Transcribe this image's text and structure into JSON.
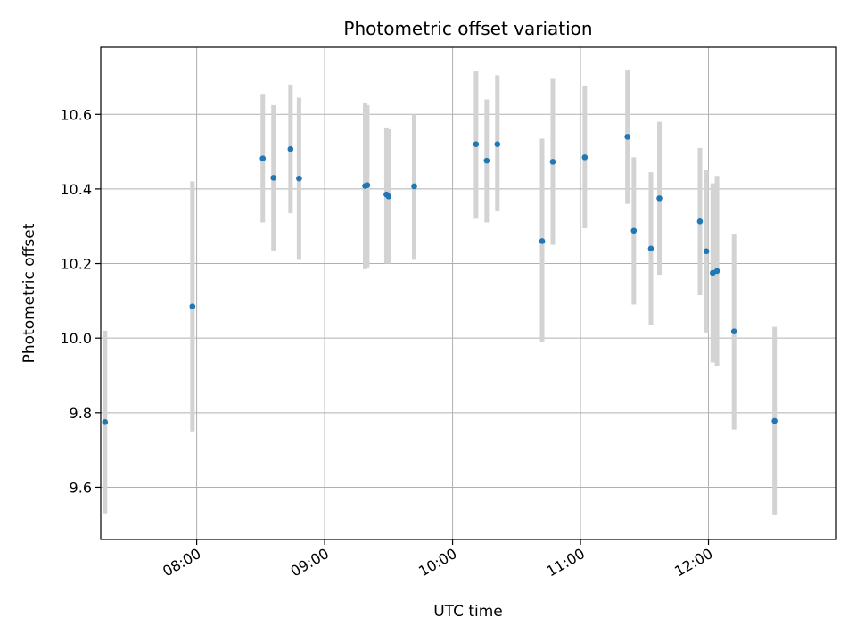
{
  "chart_data": {
    "type": "scatter",
    "title": "Photometric offset variation",
    "xlabel": "UTC time",
    "ylabel": "Photometric offset",
    "x_axis_type": "time",
    "xlim": [
      "07:15",
      "13:00"
    ],
    "ylim": [
      9.46,
      10.78
    ],
    "xticks": [
      "08:00",
      "09:00",
      "10:00",
      "11:00",
      "12:00"
    ],
    "yticks": [
      9.6,
      9.8,
      10.0,
      10.2,
      10.4,
      10.6
    ],
    "ytick_labels": [
      "9.6",
      "9.8",
      "10.0",
      "10.2",
      "10.4",
      "10.6"
    ],
    "grid": true,
    "point_color": "#1f77b4",
    "errorbar_color": "#d3d3d3",
    "points": [
      {
        "x": "07:17",
        "y": 9.775,
        "ylo": 9.53,
        "yhi": 10.02
      },
      {
        "x": "07:58",
        "y": 10.085,
        "ylo": 9.75,
        "yhi": 10.42
      },
      {
        "x": "08:31",
        "y": 10.482,
        "ylo": 10.31,
        "yhi": 10.655
      },
      {
        "x": "08:36",
        "y": 10.43,
        "ylo": 10.235,
        "yhi": 10.625
      },
      {
        "x": "08:44",
        "y": 10.507,
        "ylo": 10.335,
        "yhi": 10.68
      },
      {
        "x": "08:48",
        "y": 10.428,
        "ylo": 10.21,
        "yhi": 10.645
      },
      {
        "x": "09:19",
        "y": 10.408,
        "ylo": 10.185,
        "yhi": 10.63
      },
      {
        "x": "09:20",
        "y": 10.41,
        "ylo": 10.19,
        "yhi": 10.625
      },
      {
        "x": "09:29",
        "y": 10.385,
        "ylo": 10.2,
        "yhi": 10.565
      },
      {
        "x": "09:30",
        "y": 10.38,
        "ylo": 10.2,
        "yhi": 10.56
      },
      {
        "x": "09:42",
        "y": 10.407,
        "ylo": 10.21,
        "yhi": 10.6
      },
      {
        "x": "10:11",
        "y": 10.52,
        "ylo": 10.32,
        "yhi": 10.715
      },
      {
        "x": "10:16",
        "y": 10.476,
        "ylo": 10.31,
        "yhi": 10.64
      },
      {
        "x": "10:21",
        "y": 10.52,
        "ylo": 10.34,
        "yhi": 10.705
      },
      {
        "x": "10:42",
        "y": 10.26,
        "ylo": 9.99,
        "yhi": 10.535
      },
      {
        "x": "10:47",
        "y": 10.473,
        "ylo": 10.25,
        "yhi": 10.695
      },
      {
        "x": "11:02",
        "y": 10.485,
        "ylo": 10.295,
        "yhi": 10.675
      },
      {
        "x": "11:22",
        "y": 10.54,
        "ylo": 10.36,
        "yhi": 10.72
      },
      {
        "x": "11:25",
        "y": 10.288,
        "ylo": 10.09,
        "yhi": 10.485
      },
      {
        "x": "11:33",
        "y": 10.24,
        "ylo": 10.035,
        "yhi": 10.445
      },
      {
        "x": "11:37",
        "y": 10.375,
        "ylo": 10.17,
        "yhi": 10.58
      },
      {
        "x": "11:56",
        "y": 10.313,
        "ylo": 10.115,
        "yhi": 10.51
      },
      {
        "x": "11:59",
        "y": 10.233,
        "ylo": 10.015,
        "yhi": 10.45
      },
      {
        "x": "12:02",
        "y": 10.175,
        "ylo": 9.935,
        "yhi": 10.415
      },
      {
        "x": "12:04",
        "y": 10.18,
        "ylo": 9.925,
        "yhi": 10.435
      },
      {
        "x": "12:12",
        "y": 10.018,
        "ylo": 9.755,
        "yhi": 10.28
      },
      {
        "x": "12:31",
        "y": 9.778,
        "ylo": 9.525,
        "yhi": 10.03
      }
    ]
  }
}
